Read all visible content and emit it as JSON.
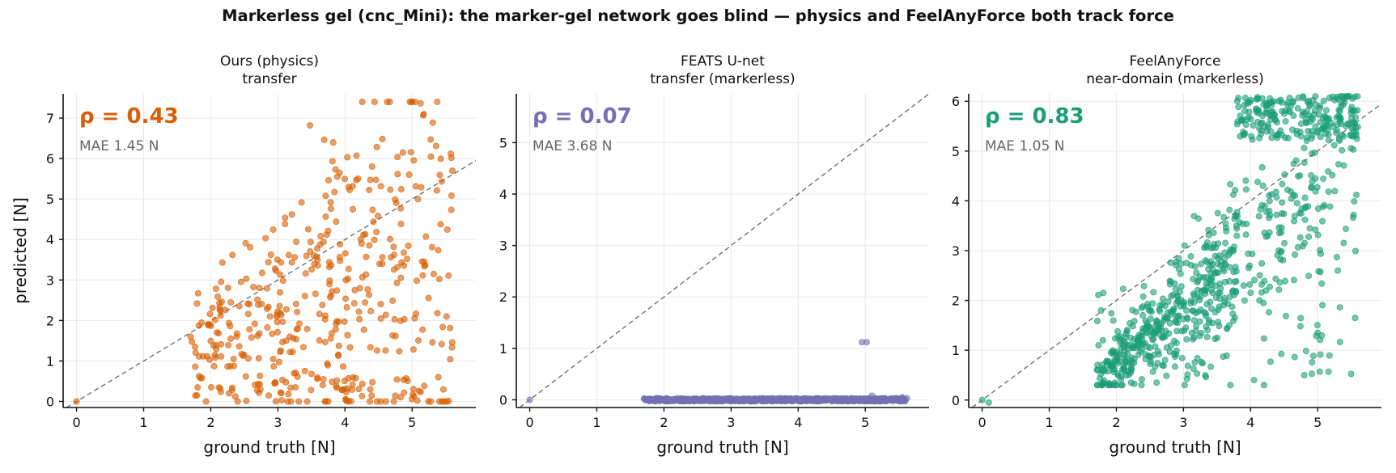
{
  "suptitle": "Markerless gel (cnc_Mini): the marker-gel network goes blind — physics and FeelAnyForce both track force",
  "colors": {
    "ours": "#d95f02",
    "feats": "#7570b3",
    "feel": "#1b9e77",
    "mae": "#666666",
    "diag": "#666666"
  },
  "chart_data": [
    {
      "type": "scatter",
      "title_lines": [
        "Ours (physics)",
        "transfer"
      ],
      "xlabel": "ground truth [N]",
      "ylabel": "predicted [N]",
      "xlim": [
        -0.2,
        5.95
      ],
      "ylim": [
        -0.15,
        7.6
      ],
      "xticks": [
        0,
        1,
        2,
        3,
        4,
        5
      ],
      "yticks": [
        0,
        1,
        2,
        3,
        4,
        5,
        6,
        7
      ],
      "grid": true,
      "diagonal": "y = x",
      "rho": "ρ = 0.43",
      "mae": "MAE 1.45 N",
      "color_key": "ours",
      "cloud": {
        "n": 450,
        "xmin": 1.7,
        "xmax": 5.6,
        "ymin": 0.0,
        "ymax": 7.4,
        "seed": 11,
        "mode": "spread"
      },
      "points": [
        [
          0.0,
          0.0
        ],
        [
          5.0,
          7.4
        ],
        [
          1.7,
          1.6
        ],
        [
          5.6,
          5.7
        ]
      ]
    },
    {
      "type": "scatter",
      "title_lines": [
        "FEATS U-net",
        "transfer (markerless)"
      ],
      "xlabel": "ground truth [N]",
      "ylabel": "",
      "xlim": [
        -0.2,
        5.95
      ],
      "ylim": [
        -0.15,
        5.95
      ],
      "xticks": [
        0,
        1,
        2,
        3,
        4,
        5
      ],
      "yticks": [
        0,
        1,
        2,
        3,
        4,
        5
      ],
      "grid": true,
      "diagonal": "y = x",
      "rho": "ρ = 0.07",
      "mae": "MAE 3.68 N",
      "color_key": "feats",
      "cloud": {
        "n": 700,
        "xmin": 1.7,
        "xmax": 5.6,
        "ymin": -0.03,
        "ymax": 0.03,
        "seed": 23,
        "mode": "flat"
      },
      "points": [
        [
          0.0,
          0.0
        ],
        [
          4.95,
          1.12
        ],
        [
          5.02,
          1.12
        ],
        [
          5.1,
          0.08
        ],
        [
          5.55,
          0.05
        ],
        [
          5.62,
          0.03
        ]
      ]
    },
    {
      "type": "scatter",
      "title_lines": [
        "FeelAnyForce",
        "near-domain (markerless)"
      ],
      "xlabel": "ground truth [N]",
      "ylabel": "",
      "xlim": [
        -0.2,
        5.95
      ],
      "ylim": [
        -0.15,
        6.15
      ],
      "xticks": [
        0,
        1,
        2,
        3,
        4,
        5
      ],
      "yticks": [
        0,
        1,
        2,
        3,
        4,
        5,
        6
      ],
      "grid": true,
      "diagonal": "y = x",
      "rho": "ρ = 0.83",
      "mae": "MAE 1.05 N",
      "color_key": "feel",
      "cloud": {
        "n": 850,
        "xmin": 1.7,
        "xmax": 5.6,
        "ymin": 0.3,
        "ymax": 6.1,
        "seed": 37,
        "mode": "band"
      },
      "points": [
        [
          0.0,
          0.0
        ],
        [
          0.1,
          -0.05
        ],
        [
          1.8,
          1.2
        ],
        [
          4.2,
          0.3
        ],
        [
          3.7,
          0.3
        ],
        [
          4.8,
          0.5
        ],
        [
          5.0,
          1.35
        ],
        [
          5.3,
          2.6
        ]
      ]
    }
  ]
}
